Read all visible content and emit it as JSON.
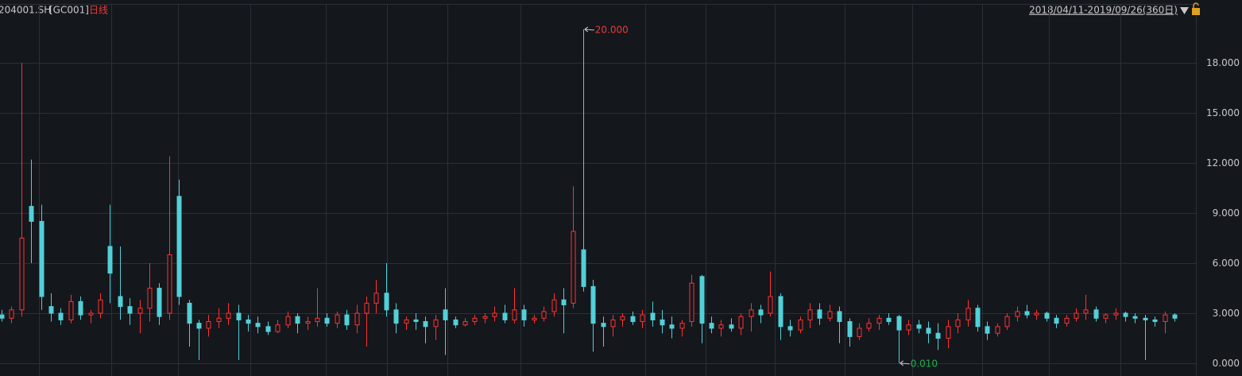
{
  "chart_data": {
    "type": "candlestick",
    "title": "204001.SH",
    "code": "[GC001]",
    "period": "日线",
    "range": "2018/04/11-2019/09/26(360日)",
    "up_color": "#ff3232",
    "down_color": "#52d0d8",
    "ylim": [
      -0.76,
      21.52
    ],
    "yticks": [
      {
        "value": 0,
        "label": "0.000"
      },
      {
        "value": 3,
        "label": "3.000"
      },
      {
        "value": 6,
        "label": "6.000"
      },
      {
        "value": 9,
        "label": "9.000"
      },
      {
        "value": 12,
        "label": "12.000"
      },
      {
        "value": 15,
        "label": "15.000"
      },
      {
        "value": 18,
        "label": "18.000"
      }
    ],
    "grid": true,
    "annotations": [
      {
        "value": 20,
        "label": "20.000",
        "color": "#e83a3a"
      },
      {
        "value": 0.01,
        "label": "0.010",
        "color": "#22b14c"
      }
    ],
    "candles": [
      [
        2.9,
        3.2,
        2.5,
        2.7
      ],
      [
        2.7,
        3.4,
        2.4,
        3.2
      ],
      [
        3.2,
        18.0,
        2.8,
        7.5
      ],
      [
        9.4,
        12.2,
        6.0,
        8.5
      ],
      [
        8.5,
        9.5,
        3.2,
        4.0
      ],
      [
        3.4,
        4.2,
        2.5,
        3.0
      ],
      [
        3.0,
        3.3,
        2.3,
        2.6
      ],
      [
        2.6,
        4.1,
        2.4,
        3.7
      ],
      [
        3.7,
        4.0,
        2.6,
        2.9
      ],
      [
        2.9,
        3.2,
        2.4,
        3.0
      ],
      [
        3.0,
        4.2,
        2.7,
        3.8
      ],
      [
        7.0,
        9.5,
        3.6,
        5.4
      ],
      [
        4.0,
        7.0,
        2.6,
        3.4
      ],
      [
        3.4,
        3.9,
        2.3,
        3.0
      ],
      [
        3.0,
        3.8,
        1.8,
        3.3
      ],
      [
        3.3,
        6.0,
        2.5,
        4.5
      ],
      [
        4.5,
        4.8,
        2.3,
        2.8
      ],
      [
        3.0,
        12.4,
        2.6,
        6.5
      ],
      [
        10.0,
        11.0,
        3.5,
        4.0
      ],
      [
        3.6,
        3.8,
        1.0,
        2.4
      ],
      [
        2.4,
        2.6,
        0.2,
        2.1
      ],
      [
        2.1,
        2.9,
        1.6,
        2.5
      ],
      [
        2.5,
        3.3,
        2.1,
        2.7
      ],
      [
        2.7,
        3.6,
        2.3,
        3.0
      ],
      [
        3.0,
        3.5,
        0.2,
        2.6
      ],
      [
        2.6,
        2.9,
        1.9,
        2.4
      ],
      [
        2.4,
        2.8,
        1.8,
        2.2
      ],
      [
        2.2,
        2.5,
        1.7,
        1.9
      ],
      [
        1.9,
        2.6,
        1.8,
        2.3
      ],
      [
        2.3,
        3.1,
        2.1,
        2.8
      ],
      [
        2.8,
        3.0,
        1.8,
        2.4
      ],
      [
        2.4,
        2.8,
        2.0,
        2.5
      ],
      [
        2.5,
        4.5,
        2.2,
        2.7
      ],
      [
        2.7,
        3.0,
        2.2,
        2.4
      ],
      [
        2.4,
        3.1,
        2.1,
        2.9
      ],
      [
        2.9,
        3.2,
        2.0,
        2.3
      ],
      [
        2.3,
        3.5,
        1.8,
        3.0
      ],
      [
        3.0,
        4.0,
        1.0,
        3.6
      ],
      [
        3.6,
        5.0,
        3.0,
        4.2
      ],
      [
        4.2,
        6.0,
        2.8,
        3.2
      ],
      [
        3.2,
        3.6,
        1.8,
        2.4
      ],
      [
        2.4,
        2.8,
        2.0,
        2.6
      ],
      [
        2.6,
        3.0,
        2.0,
        2.5
      ],
      [
        2.5,
        2.8,
        1.2,
        2.2
      ],
      [
        2.2,
        2.9,
        1.4,
        2.6
      ],
      [
        3.2,
        4.5,
        0.5,
        2.6
      ],
      [
        2.6,
        2.8,
        2.1,
        2.3
      ],
      [
        2.3,
        2.7,
        2.2,
        2.5
      ],
      [
        2.5,
        2.9,
        2.3,
        2.7
      ],
      [
        2.7,
        3.0,
        2.4,
        2.8
      ],
      [
        2.8,
        3.4,
        2.5,
        3.0
      ],
      [
        3.0,
        3.5,
        2.4,
        2.6
      ],
      [
        2.6,
        4.5,
        2.4,
        3.2
      ],
      [
        3.2,
        3.5,
        2.2,
        2.6
      ],
      [
        2.6,
        2.9,
        2.4,
        2.7
      ],
      [
        2.7,
        3.4,
        2.5,
        3.1
      ],
      [
        3.1,
        4.2,
        2.8,
        3.8
      ],
      [
        3.8,
        4.5,
        1.8,
        3.5
      ],
      [
        3.6,
        10.6,
        3.3,
        7.9
      ],
      [
        6.8,
        20.0,
        4.3,
        4.6
      ],
      [
        4.6,
        5.0,
        0.7,
        2.4
      ],
      [
        2.4,
        2.8,
        1.0,
        2.2
      ],
      [
        2.2,
        2.9,
        1.6,
        2.6
      ],
      [
        2.6,
        3.0,
        2.2,
        2.8
      ],
      [
        2.8,
        3.1,
        2.3,
        2.5
      ],
      [
        2.5,
        3.2,
        2.1,
        2.9
      ],
      [
        3.0,
        3.7,
        2.2,
        2.6
      ],
      [
        2.6,
        3.2,
        1.8,
        2.3
      ],
      [
        2.3,
        2.8,
        1.5,
        2.1
      ],
      [
        2.1,
        2.6,
        1.6,
        2.4
      ],
      [
        2.5,
        5.3,
        2.2,
        4.8
      ],
      [
        5.2,
        5.3,
        1.2,
        2.4
      ],
      [
        2.4,
        2.8,
        1.8,
        2.1
      ],
      [
        2.1,
        2.6,
        1.6,
        2.3
      ],
      [
        2.3,
        2.7,
        1.9,
        2.1
      ],
      [
        2.1,
        3.0,
        1.7,
        2.8
      ],
      [
        2.8,
        3.6,
        1.9,
        3.2
      ],
      [
        3.2,
        3.5,
        2.4,
        2.9
      ],
      [
        3.0,
        5.5,
        2.8,
        4.0
      ],
      [
        4.0,
        4.2,
        1.4,
        2.2
      ],
      [
        2.2,
        2.6,
        1.6,
        2.0
      ],
      [
        2.0,
        2.8,
        1.8,
        2.6
      ],
      [
        2.6,
        3.6,
        2.1,
        3.2
      ],
      [
        3.2,
        3.6,
        2.3,
        2.7
      ],
      [
        2.7,
        3.5,
        2.5,
        3.1
      ],
      [
        3.1,
        3.4,
        1.2,
        2.5
      ],
      [
        2.5,
        2.7,
        1.0,
        1.6
      ],
      [
        1.6,
        2.4,
        1.4,
        2.1
      ],
      [
        2.1,
        2.7,
        1.9,
        2.4
      ],
      [
        2.4,
        2.9,
        2.0,
        2.7
      ],
      [
        2.7,
        3.0,
        2.3,
        2.5
      ],
      [
        2.8,
        2.9,
        0.01,
        2.0
      ],
      [
        2.0,
        2.6,
        1.7,
        2.3
      ],
      [
        2.3,
        2.6,
        1.8,
        2.1
      ],
      [
        2.1,
        2.5,
        1.2,
        1.8
      ],
      [
        1.8,
        2.4,
        0.8,
        1.5
      ],
      [
        1.5,
        2.6,
        0.9,
        2.2
      ],
      [
        2.2,
        3.0,
        1.8,
        2.6
      ],
      [
        2.6,
        3.8,
        2.2,
        3.3
      ],
      [
        3.3,
        3.5,
        1.9,
        2.2
      ],
      [
        2.2,
        2.5,
        1.4,
        1.8
      ],
      [
        1.8,
        2.4,
        1.6,
        2.2
      ],
      [
        2.2,
        3.0,
        2.0,
        2.8
      ],
      [
        2.8,
        3.4,
        2.5,
        3.1
      ],
      [
        3.1,
        3.5,
        2.7,
        2.9
      ],
      [
        2.9,
        3.2,
        2.6,
        3.0
      ],
      [
        3.0,
        3.1,
        2.5,
        2.7
      ],
      [
        2.7,
        2.9,
        2.1,
        2.4
      ],
      [
        2.4,
        2.9,
        2.2,
        2.7
      ],
      [
        2.7,
        3.3,
        2.5,
        3.0
      ],
      [
        3.0,
        4.1,
        2.6,
        3.2
      ],
      [
        3.2,
        3.4,
        2.5,
        2.7
      ],
      [
        2.7,
        3.0,
        2.4,
        2.9
      ],
      [
        2.9,
        3.3,
        2.6,
        3.0
      ],
      [
        3.0,
        3.1,
        2.5,
        2.8
      ],
      [
        2.8,
        3.0,
        2.4,
        2.7
      ],
      [
        2.7,
        2.9,
        0.2,
        2.6
      ],
      [
        2.6,
        2.8,
        2.2,
        2.5
      ],
      [
        2.5,
        3.1,
        1.8,
        2.9
      ],
      [
        2.9,
        3.0,
        2.5,
        2.7
      ]
    ]
  }
}
